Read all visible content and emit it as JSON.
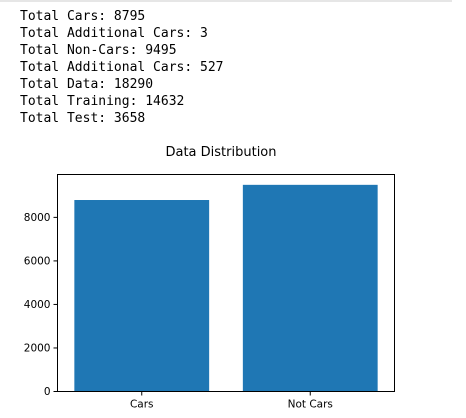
{
  "output_lines": [
    "Total Cars: 8795",
    "Total Additional Cars: 3",
    "Total Non-Cars: 9495",
    "Total Additional Cars: 527",
    "Total Data: 18290",
    "Total Training: 14632",
    "Total Test: 3658"
  ],
  "chart_data": {
    "type": "bar",
    "title": "Data Distribution",
    "categories": [
      "Cars",
      "Not Cars"
    ],
    "values": [
      8798,
      9495
    ],
    "xlabel": "",
    "ylabel": "",
    "ylim": [
      0,
      9970
    ],
    "yticks": [
      0,
      2000,
      4000,
      6000,
      8000
    ],
    "ytick_labels": [
      "0",
      "2000",
      "4000",
      "6000",
      "8000"
    ],
    "grid": false,
    "colors": {
      "bar": "#1f77b4",
      "axes": "#000000",
      "text": "#000000"
    }
  }
}
